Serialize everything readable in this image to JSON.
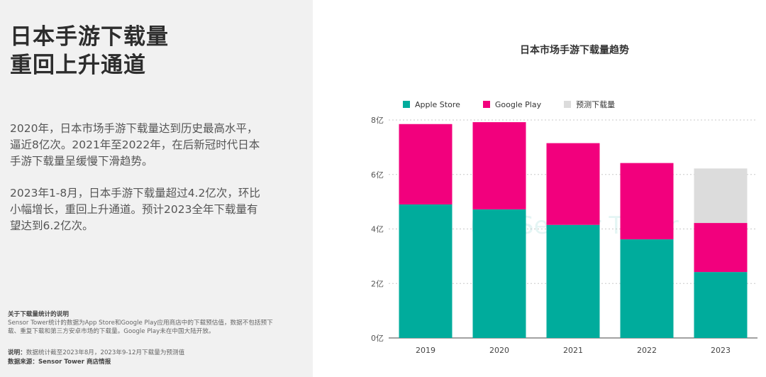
{
  "left_panel": {
    "headline": [
      "日本手游下载量",
      "重回上升通道"
    ],
    "paragraph1": "2020年，日本市场手游下载量达到历史最高水平，逼近8亿次。2021年至2022年，在后新冠时代日本手游下载量呈缓慢下滑趋势。",
    "paragraph2": "2023年1-8月，日本手游下载量超过4.2亿次，环比小幅增长，重回上升通道。预计2023全年下载量有望达到6.2亿次。",
    "note_title": "关于下载量统计的说明",
    "note_body": "Sensor Tower统计的数据为App Store和Google Play应用商店中的下载预估值，数据不包括预下载、重复下载和第三方安卓市场的下载量。Google Play未在中国大陆开放。",
    "explain_label": "说明：",
    "explain_text": "数据统计截至2023年8月，2023年9-12月下载量为预测值",
    "source_label": "数据来源：",
    "source_text": "Sensor Tower 商店情报"
  },
  "watermark": {
    "text": "Sensor Tower"
  },
  "chart_data": {
    "type": "bar",
    "stacked": true,
    "title": "日本市场手游下载量趋势",
    "categories": [
      "2019",
      "2020",
      "2021",
      "2022",
      "2023"
    ],
    "series": [
      {
        "name": "Apple Store",
        "color": "#00ac9c",
        "values": [
          4.9,
          4.72,
          4.15,
          3.62,
          2.42
        ]
      },
      {
        "name": "Google Play",
        "color": "#f2007d",
        "values": [
          2.95,
          3.2,
          3.0,
          2.8,
          1.8
        ]
      },
      {
        "name": "预测下载量",
        "color": "#dcdcdc",
        "values": [
          0,
          0,
          0,
          0,
          2.0
        ]
      }
    ],
    "y_ticks": [
      "0亿",
      "2亿",
      "4亿",
      "6亿",
      "8亿"
    ],
    "y_tick_values": [
      0,
      2,
      4,
      6,
      8
    ],
    "ylim": [
      0,
      8
    ],
    "grid": true,
    "legend_position": "top-left"
  }
}
